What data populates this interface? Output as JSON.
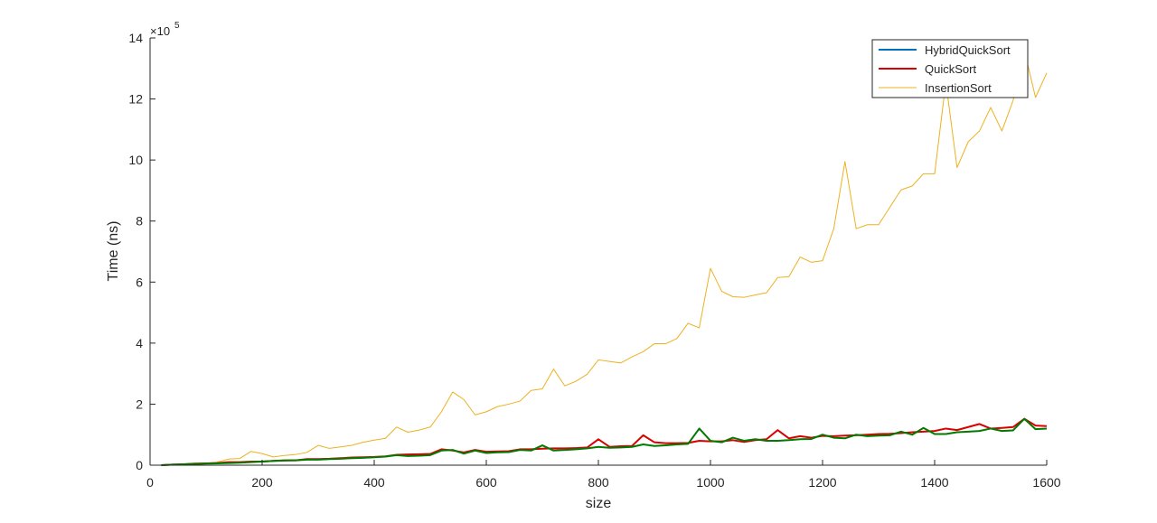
{
  "chart_data": {
    "type": "line",
    "xlabel": "size",
    "ylabel": "Time (ns)",
    "y_exponent_label": "×10",
    "y_exponent_power": "5",
    "xlim": [
      0,
      1600
    ],
    "ylim": [
      0,
      14
    ],
    "xticks": [
      0,
      200,
      400,
      600,
      800,
      1000,
      1200,
      1400,
      1600
    ],
    "yticks": [
      0,
      2,
      4,
      6,
      8,
      10,
      12,
      14
    ],
    "grid": false,
    "legend_position": "top-right",
    "x": [
      20,
      40,
      60,
      80,
      100,
      120,
      140,
      160,
      180,
      200,
      220,
      240,
      260,
      280,
      300,
      320,
      340,
      360,
      380,
      400,
      420,
      440,
      460,
      480,
      500,
      520,
      540,
      560,
      580,
      600,
      620,
      640,
      660,
      680,
      700,
      720,
      740,
      760,
      780,
      800,
      820,
      840,
      860,
      880,
      900,
      920,
      940,
      960,
      980,
      1000,
      1020,
      1040,
      1060,
      1080,
      1100,
      1120,
      1140,
      1160,
      1180,
      1200,
      1220,
      1240,
      1260,
      1280,
      1300,
      1320,
      1340,
      1360,
      1380,
      1400,
      1420,
      1440,
      1460,
      1480,
      1500,
      1520,
      1540,
      1560,
      1580,
      1600
    ],
    "series": [
      {
        "name": "HybridQuickSort",
        "color": "#0072BD",
        "values": [
          0.0,
          0.02,
          0.03,
          0.04,
          0.05,
          0.06,
          0.07,
          0.08,
          0.1,
          0.12,
          0.14,
          0.15,
          0.16,
          0.18,
          0.18,
          0.2,
          0.21,
          0.23,
          0.24,
          0.26,
          0.28,
          0.33,
          0.3,
          0.31,
          0.33,
          0.48,
          0.5,
          0.38,
          0.48,
          0.4,
          0.42,
          0.43,
          0.5,
          0.48,
          0.65,
          0.48,
          0.5,
          0.52,
          0.55,
          0.6,
          0.57,
          0.58,
          0.6,
          0.68,
          0.63,
          0.65,
          0.68,
          0.7,
          1.2,
          0.8,
          0.75,
          0.9,
          0.8,
          0.85,
          0.8,
          0.8,
          0.82,
          0.85,
          0.86,
          1.0,
          0.9,
          0.88,
          1.0,
          0.95,
          0.97,
          0.98,
          1.1,
          1.0,
          1.22,
          1.02,
          1.02,
          1.08,
          1.1,
          1.12,
          1.2,
          1.12,
          1.14,
          1.52,
          1.18,
          1.2
        ]
      },
      {
        "name": "QuickSort",
        "color": "#D90000",
        "values": [
          0.0,
          0.02,
          0.03,
          0.05,
          0.06,
          0.07,
          0.1,
          0.1,
          0.12,
          0.12,
          0.14,
          0.16,
          0.16,
          0.2,
          0.2,
          0.21,
          0.23,
          0.25,
          0.26,
          0.27,
          0.29,
          0.34,
          0.35,
          0.36,
          0.37,
          0.52,
          0.48,
          0.42,
          0.5,
          0.44,
          0.45,
          0.46,
          0.52,
          0.52,
          0.54,
          0.55,
          0.55,
          0.56,
          0.58,
          0.85,
          0.6,
          0.62,
          0.63,
          0.98,
          0.75,
          0.72,
          0.72,
          0.73,
          0.8,
          0.78,
          0.78,
          0.82,
          0.76,
          0.82,
          0.85,
          1.15,
          0.88,
          0.95,
          0.9,
          0.96,
          0.95,
          0.97,
          0.98,
          1.0,
          1.02,
          1.03,
          1.05,
          1.08,
          1.1,
          1.12,
          1.2,
          1.15,
          1.25,
          1.35,
          1.2,
          1.22,
          1.25,
          1.52,
          1.3,
          1.28
        ]
      },
      {
        "name": "InsertionSort",
        "color": "#EDB120",
        "values": [
          0.0,
          0.02,
          0.03,
          0.04,
          0.06,
          0.1,
          0.2,
          0.22,
          0.45,
          0.38,
          0.27,
          0.32,
          0.35,
          0.42,
          0.65,
          0.55,
          0.6,
          0.65,
          0.75,
          0.82,
          0.88,
          1.25,
          1.08,
          1.15,
          1.25,
          1.75,
          2.4,
          2.15,
          1.65,
          1.75,
          1.92,
          2.0,
          2.1,
          2.45,
          2.5,
          3.15,
          2.6,
          2.75,
          2.98,
          3.45,
          3.4,
          3.35,
          3.55,
          3.72,
          3.98,
          3.98,
          4.15,
          4.65,
          4.5,
          6.45,
          5.7,
          5.52,
          5.5,
          5.58,
          5.65,
          6.15,
          6.18,
          6.82,
          6.65,
          6.7,
          7.75,
          9.95,
          7.75,
          7.88,
          7.88,
          8.45,
          9.02,
          9.15,
          9.55,
          9.55,
          12.55,
          9.75,
          10.6,
          10.95,
          11.72,
          10.95,
          11.95,
          13.6,
          12.05,
          12.85
        ]
      }
    ]
  }
}
